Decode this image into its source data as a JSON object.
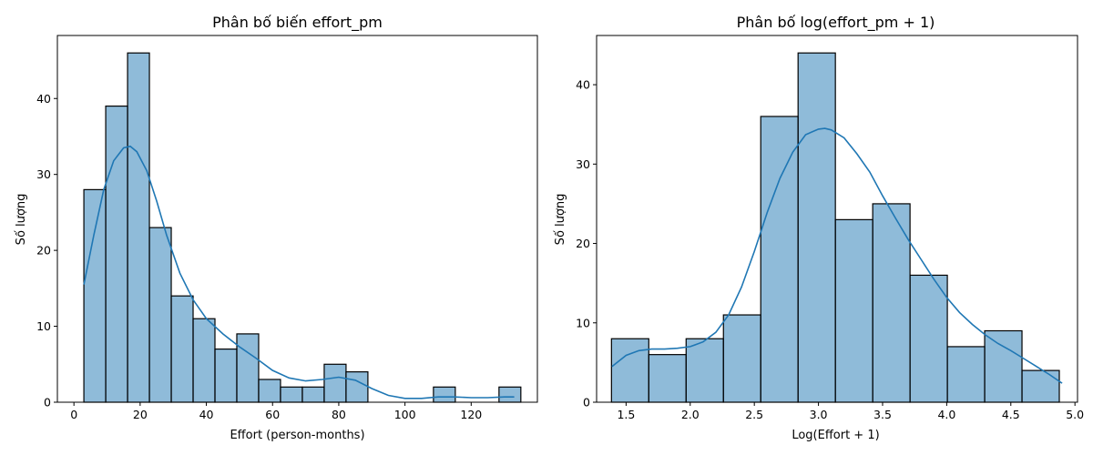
{
  "chart_data": [
    {
      "type": "bar",
      "title": "Phân bố biến effort_pm",
      "xlabel": "Effort (person-months)",
      "ylabel": "Số lượng",
      "xlim": [
        -5,
        140
      ],
      "ylim": [
        0,
        48.3
      ],
      "xticks": [
        0,
        20,
        40,
        60,
        80,
        100,
        120
      ],
      "yticks": [
        0,
        10,
        20,
        30,
        40
      ],
      "grid": false,
      "bar_color": "#1f77b4",
      "kde_color": "#1f77b4",
      "bins": [
        {
          "x0": 3.0,
          "x1": 9.6,
          "count": 28
        },
        {
          "x0": 9.6,
          "x1": 16.2,
          "count": 39
        },
        {
          "x0": 16.2,
          "x1": 22.8,
          "count": 46
        },
        {
          "x0": 22.8,
          "x1": 29.4,
          "count": 23
        },
        {
          "x0": 29.4,
          "x1": 36.0,
          "count": 14
        },
        {
          "x0": 36.0,
          "x1": 42.6,
          "count": 11
        },
        {
          "x0": 42.6,
          "x1": 49.2,
          "count": 7
        },
        {
          "x0": 49.2,
          "x1": 55.8,
          "count": 9
        },
        {
          "x0": 55.8,
          "x1": 62.4,
          "count": 3
        },
        {
          "x0": 62.4,
          "x1": 69.0,
          "count": 2
        },
        {
          "x0": 69.0,
          "x1": 75.6,
          "count": 2
        },
        {
          "x0": 75.6,
          "x1": 82.2,
          "count": 5
        },
        {
          "x0": 82.2,
          "x1": 88.8,
          "count": 4
        },
        {
          "x0": 88.8,
          "x1": 95.4,
          "count": 0
        },
        {
          "x0": 95.4,
          "x1": 102.0,
          "count": 0
        },
        {
          "x0": 102.0,
          "x1": 108.6,
          "count": 0
        },
        {
          "x0": 108.6,
          "x1": 115.2,
          "count": 2
        },
        {
          "x0": 115.2,
          "x1": 121.8,
          "count": 0
        },
        {
          "x0": 121.8,
          "x1": 128.4,
          "count": 0
        },
        {
          "x0": 128.4,
          "x1": 135.0,
          "count": 2
        }
      ],
      "kde": {
        "x": [
          3,
          6,
          9,
          12,
          15,
          17,
          19,
          22,
          25,
          28,
          32,
          36,
          40,
          45,
          50,
          55,
          60,
          65,
          70,
          75,
          80,
          85,
          90,
          95,
          100,
          105,
          110,
          115,
          120,
          125,
          130,
          133
        ],
        "y": [
          15.5,
          22.0,
          28.0,
          31.8,
          33.5,
          33.7,
          33.0,
          30.5,
          26.5,
          22.0,
          17.0,
          13.5,
          11.0,
          9.0,
          7.3,
          5.8,
          4.2,
          3.2,
          2.8,
          3.0,
          3.3,
          2.9,
          1.8,
          0.9,
          0.5,
          0.5,
          0.7,
          0.7,
          0.6,
          0.6,
          0.7,
          0.7
        ]
      }
    },
    {
      "type": "bar",
      "title": "Phân bố log(effort_pm + 1)",
      "xlabel": "Log(Effort + 1)",
      "ylabel": "Số lượng",
      "xlim": [
        1.27,
        5.02
      ],
      "ylim": [
        0,
        46.2
      ],
      "xticks": [
        1.5,
        2.0,
        2.5,
        3.0,
        3.5,
        4.0,
        4.5,
        5.0
      ],
      "yticks": [
        0,
        10,
        20,
        30,
        40
      ],
      "grid": false,
      "bar_color": "#1f77b4",
      "kde_color": "#1f77b4",
      "bins": [
        {
          "x0": 1.386,
          "x1": 1.677,
          "count": 8
        },
        {
          "x0": 1.677,
          "x1": 1.968,
          "count": 6
        },
        {
          "x0": 1.968,
          "x1": 2.259,
          "count": 8
        },
        {
          "x0": 2.259,
          "x1": 2.55,
          "count": 11
        },
        {
          "x0": 2.55,
          "x1": 2.841,
          "count": 36
        },
        {
          "x0": 2.841,
          "x1": 3.132,
          "count": 44
        },
        {
          "x0": 3.132,
          "x1": 3.423,
          "count": 23
        },
        {
          "x0": 3.423,
          "x1": 3.714,
          "count": 25
        },
        {
          "x0": 3.714,
          "x1": 4.005,
          "count": 16
        },
        {
          "x0": 4.005,
          "x1": 4.296,
          "count": 7
        },
        {
          "x0": 4.296,
          "x1": 4.587,
          "count": 9
        },
        {
          "x0": 4.587,
          "x1": 4.878,
          "count": 4
        }
      ],
      "kde": {
        "x": [
          1.39,
          1.5,
          1.6,
          1.7,
          1.8,
          1.9,
          2.0,
          2.1,
          2.2,
          2.3,
          2.4,
          2.5,
          2.6,
          2.7,
          2.8,
          2.9,
          3.0,
          3.05,
          3.1,
          3.2,
          3.3,
          3.4,
          3.5,
          3.6,
          3.7,
          3.8,
          3.9,
          4.0,
          4.1,
          4.2,
          4.3,
          4.4,
          4.5,
          4.6,
          4.7,
          4.8,
          4.9
        ],
        "y": [
          4.5,
          5.9,
          6.5,
          6.7,
          6.7,
          6.8,
          7.0,
          7.6,
          8.8,
          11.0,
          14.5,
          19.0,
          23.9,
          28.2,
          31.5,
          33.7,
          34.4,
          34.5,
          34.3,
          33.3,
          31.3,
          29.0,
          26.0,
          23.2,
          20.5,
          18.0,
          15.5,
          13.2,
          11.3,
          9.8,
          8.5,
          7.4,
          6.5,
          5.5,
          4.5,
          3.5,
          2.4
        ]
      }
    }
  ]
}
